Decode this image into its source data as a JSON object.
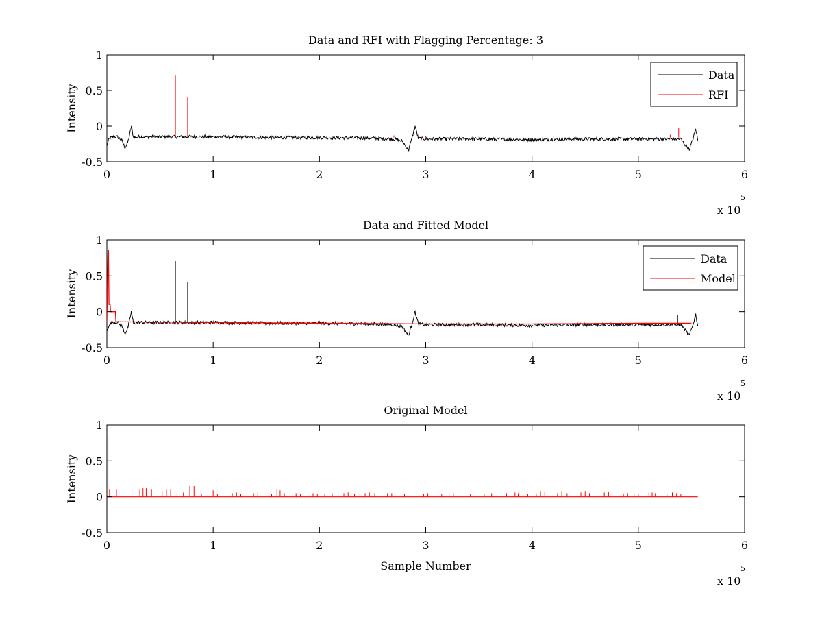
{
  "chart_data": [
    {
      "type": "line",
      "title": "Data and RFI with Flagging Percentage: 3",
      "xlabel": "",
      "ylabel": "Intensity",
      "xlim": [
        0,
        600000
      ],
      "ylim": [
        -0.5,
        1
      ],
      "xticks": [
        "0",
        "1",
        "2",
        "3",
        "4",
        "5",
        "6"
      ],
      "yticks": [
        "-0.5",
        "0",
        "0.5",
        "1"
      ],
      "x_multiplier": "x 10",
      "x_multiplier_exponent": "5",
      "legend": "top-right",
      "series": [
        {
          "name": "Data",
          "color": "#000000",
          "x": [
            0,
            2000,
            5000,
            10000,
            14000,
            17000,
            19000,
            21000,
            23000,
            25000,
            30000,
            60000,
            64000,
            66000,
            74000,
            76000,
            78000,
            100000,
            150000,
            200000,
            250000,
            270000,
            278000,
            282000,
            284000,
            287000,
            290000,
            293000,
            300000,
            350000,
            400000,
            450000,
            500000,
            540000,
            544000,
            548000,
            551000,
            554000,
            556000
          ],
          "y": [
            -0.28,
            -0.18,
            -0.15,
            -0.15,
            -0.2,
            -0.3,
            -0.26,
            -0.15,
            0,
            -0.16,
            -0.15,
            -0.15,
            -0.15,
            -0.15,
            -0.15,
            -0.15,
            -0.15,
            -0.15,
            -0.16,
            -0.16,
            -0.17,
            -0.18,
            -0.21,
            -0.3,
            -0.33,
            -0.17,
            0,
            -0.17,
            -0.18,
            -0.18,
            -0.19,
            -0.18,
            -0.18,
            -0.18,
            -0.26,
            -0.33,
            -0.2,
            -0.04,
            -0.2
          ]
        },
        {
          "name": "RFI",
          "color": "#ff0000",
          "spikes": [
            {
              "x": 64500,
              "y": 0.71
            },
            {
              "x": 76000,
              "y": 0.41
            },
            {
              "x": 270000,
              "y": -0.13
            },
            {
              "x": 300000,
              "y": -0.14
            },
            {
              "x": 350000,
              "y": -0.15
            },
            {
              "x": 380000,
              "y": -0.16
            },
            {
              "x": 385000,
              "y": -0.15
            },
            {
              "x": 410000,
              "y": -0.15
            },
            {
              "x": 420000,
              "y": -0.15
            },
            {
              "x": 530000,
              "y": -0.12
            },
            {
              "x": 538000,
              "y": -0.03
            }
          ]
        }
      ]
    },
    {
      "type": "line",
      "title": "Data and Fitted Model",
      "xlabel": "",
      "ylabel": "Intensity",
      "xlim": [
        0,
        600000
      ],
      "ylim": [
        -0.5,
        1
      ],
      "xticks": [
        "0",
        "1",
        "2",
        "3",
        "4",
        "5",
        "6"
      ],
      "yticks": [
        "-0.5",
        "0",
        "0.5",
        "1"
      ],
      "x_multiplier": "x 10",
      "x_multiplier_exponent": "5",
      "legend": "top-right",
      "series": [
        {
          "name": "Data",
          "color": "#000000",
          "x": [
            0,
            2000,
            5000,
            10000,
            14000,
            17000,
            19000,
            21000,
            23000,
            25000,
            30000,
            60000,
            100000,
            150000,
            200000,
            250000,
            270000,
            278000,
            282000,
            284000,
            287000,
            290000,
            293000,
            300000,
            350000,
            400000,
            450000,
            500000,
            540000,
            544000,
            548000,
            551000,
            554000,
            556000
          ],
          "y": [
            -0.28,
            -0.18,
            -0.15,
            -0.15,
            -0.2,
            -0.3,
            -0.26,
            -0.15,
            0,
            -0.16,
            -0.15,
            -0.15,
            -0.15,
            -0.16,
            -0.16,
            -0.17,
            -0.18,
            -0.21,
            -0.3,
            -0.33,
            -0.17,
            0,
            -0.17,
            -0.18,
            -0.18,
            -0.19,
            -0.18,
            -0.18,
            -0.18,
            -0.26,
            -0.33,
            -0.2,
            -0.04,
            -0.2
          ],
          "spikes": [
            {
              "x": 64500,
              "y": 0.71
            },
            {
              "x": 76000,
              "y": 0.41
            },
            {
              "x": 537000,
              "y": -0.05
            }
          ]
        },
        {
          "name": "Model",
          "color": "#ff0000",
          "x": [
            0,
            1000,
            1500,
            2000,
            3000,
            3500,
            4000,
            5000,
            7000,
            8000,
            8500,
            9000,
            100000,
            200000,
            300000,
            400000,
            500000,
            550000
          ],
          "y": [
            -0.15,
            0.85,
            0.85,
            0.1,
            0.1,
            0.0,
            0.0,
            0.0,
            0.0,
            0.0,
            -0.14,
            -0.14,
            -0.15,
            -0.16,
            -0.17,
            -0.17,
            -0.16,
            -0.16
          ]
        }
      ]
    },
    {
      "type": "line",
      "title": "Original Model",
      "xlabel": "Sample Number",
      "ylabel": "Intensity",
      "xlim": [
        0,
        600000
      ],
      "ylim": [
        -0.5,
        1
      ],
      "xticks": [
        "0",
        "1",
        "2",
        "3",
        "4",
        "5",
        "6"
      ],
      "yticks": [
        "-0.5",
        "0",
        "0.5",
        "1"
      ],
      "x_multiplier": "x 10",
      "x_multiplier_exponent": "5",
      "series": [
        {
          "color": "#ff0000",
          "baseline": 0,
          "x_range": [
            0,
            556000
          ],
          "spikes": [
            {
              "x": 1000,
              "y": 0.85
            },
            {
              "x": 2500,
              "y": 0.1
            },
            {
              "x": 9000,
              "y": 0.1
            },
            {
              "x": 31000,
              "y": 0.1
            },
            {
              "x": 34000,
              "y": 0.12
            },
            {
              "x": 37000,
              "y": 0.12
            },
            {
              "x": 42000,
              "y": 0.1
            },
            {
              "x": 52000,
              "y": 0.08
            },
            {
              "x": 56000,
              "y": 0.1
            },
            {
              "x": 60000,
              "y": 0.1
            },
            {
              "x": 66000,
              "y": 0.05
            },
            {
              "x": 72000,
              "y": 0.06
            },
            {
              "x": 78000,
              "y": 0.15
            },
            {
              "x": 82000,
              "y": 0.15
            },
            {
              "x": 89000,
              "y": 0.04
            },
            {
              "x": 97000,
              "y": 0.08
            },
            {
              "x": 100000,
              "y": 0.09
            },
            {
              "x": 104000,
              "y": 0.04
            },
            {
              "x": 118000,
              "y": 0.05
            },
            {
              "x": 122000,
              "y": 0.06
            },
            {
              "x": 126000,
              "y": 0.04
            },
            {
              "x": 138000,
              "y": 0.05
            },
            {
              "x": 142000,
              "y": 0.06
            },
            {
              "x": 155000,
              "y": 0.04
            },
            {
              "x": 160000,
              "y": 0.1
            },
            {
              "x": 163000,
              "y": 0.09
            },
            {
              "x": 167000,
              "y": 0.05
            },
            {
              "x": 178000,
              "y": 0.05
            },
            {
              "x": 182000,
              "y": 0.04
            },
            {
              "x": 194000,
              "y": 0.05
            },
            {
              "x": 198000,
              "y": 0.04
            },
            {
              "x": 205000,
              "y": 0.04
            },
            {
              "x": 212000,
              "y": 0.05
            },
            {
              "x": 223000,
              "y": 0.05
            },
            {
              "x": 227000,
              "y": 0.06
            },
            {
              "x": 233000,
              "y": 0.04
            },
            {
              "x": 243000,
              "y": 0.05
            },
            {
              "x": 247000,
              "y": 0.06
            },
            {
              "x": 252000,
              "y": 0.05
            },
            {
              "x": 264000,
              "y": 0.05
            },
            {
              "x": 268000,
              "y": 0.05
            },
            {
              "x": 280000,
              "y": 0.04
            },
            {
              "x": 298000,
              "y": 0.04
            },
            {
              "x": 302000,
              "y": 0.05
            },
            {
              "x": 315000,
              "y": 0.04
            },
            {
              "x": 322000,
              "y": 0.05
            },
            {
              "x": 326000,
              "y": 0.05
            },
            {
              "x": 338000,
              "y": 0.05
            },
            {
              "x": 342000,
              "y": 0.04
            },
            {
              "x": 355000,
              "y": 0.04
            },
            {
              "x": 362000,
              "y": 0.05
            },
            {
              "x": 376000,
              "y": 0.05
            },
            {
              "x": 384000,
              "y": 0.06
            },
            {
              "x": 387000,
              "y": 0.05
            },
            {
              "x": 396000,
              "y": 0.04
            },
            {
              "x": 404000,
              "y": 0.04
            },
            {
              "x": 408000,
              "y": 0.08
            },
            {
              "x": 412000,
              "y": 0.07
            },
            {
              "x": 424000,
              "y": 0.05
            },
            {
              "x": 428000,
              "y": 0.08
            },
            {
              "x": 433000,
              "y": 0.05
            },
            {
              "x": 446000,
              "y": 0.06
            },
            {
              "x": 450000,
              "y": 0.08
            },
            {
              "x": 454000,
              "y": 0.05
            },
            {
              "x": 468000,
              "y": 0.06
            },
            {
              "x": 472000,
              "y": 0.07
            },
            {
              "x": 486000,
              "y": 0.04
            },
            {
              "x": 490000,
              "y": 0.05
            },
            {
              "x": 496000,
              "y": 0.05
            },
            {
              "x": 500000,
              "y": 0.04
            },
            {
              "x": 510000,
              "y": 0.06
            },
            {
              "x": 513000,
              "y": 0.06
            },
            {
              "x": 516000,
              "y": 0.05
            },
            {
              "x": 527000,
              "y": 0.04
            },
            {
              "x": 532000,
              "y": 0.06
            },
            {
              "x": 536000,
              "y": 0.05
            },
            {
              "x": 540000,
              "y": 0.04
            }
          ]
        }
      ]
    }
  ]
}
